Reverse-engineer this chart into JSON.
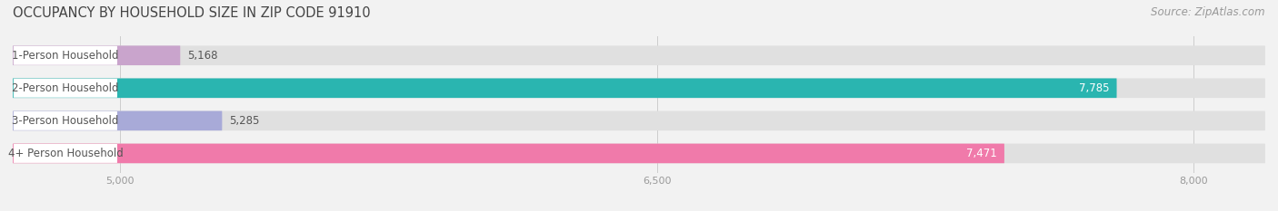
{
  "title": "OCCUPANCY BY HOUSEHOLD SIZE IN ZIP CODE 91910",
  "source": "Source: ZipAtlas.com",
  "categories": [
    "1-Person Household",
    "2-Person Household",
    "3-Person Household",
    "4+ Person Household"
  ],
  "values": [
    5168,
    7785,
    5285,
    7471
  ],
  "bar_colors": [
    "#c9a4cc",
    "#2ab5b0",
    "#a8aad8",
    "#f07aaa"
  ],
  "value_colors": [
    "#666666",
    "#ffffff",
    "#666666",
    "#ffffff"
  ],
  "xmin": 4700,
  "xmax": 8200,
  "xticks": [
    5000,
    6500,
    8000
  ],
  "xtick_labels": [
    "5,000",
    "6,500",
    "8,000"
  ],
  "label_color": "#555555",
  "background_color": "#f2f2f2",
  "bar_background": "#e0e0e0",
  "title_fontsize": 10.5,
  "source_fontsize": 8.5,
  "label_fontsize": 8.5,
  "value_fontsize": 8.5
}
